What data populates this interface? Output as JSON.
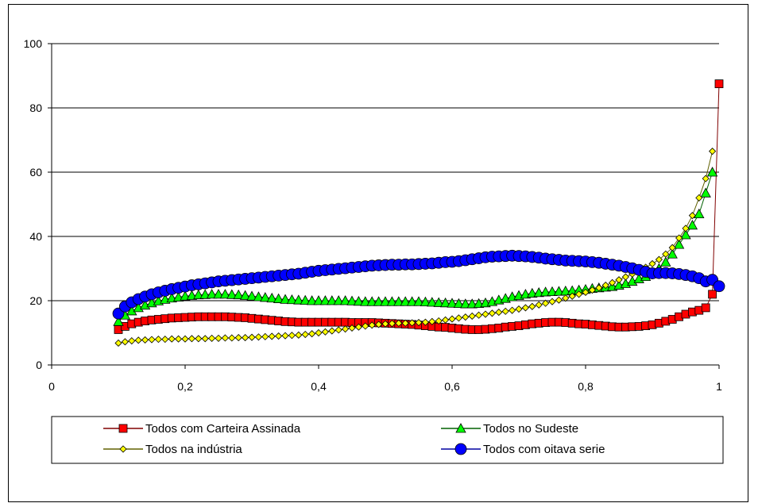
{
  "chart_data": {
    "type": "line",
    "title": "",
    "xlabel": "",
    "ylabel": "",
    "xlim": [
      0,
      1
    ],
    "ylim": [
      0,
      100
    ],
    "xticks": [
      "0",
      "0,2",
      "0,4",
      "0,6",
      "0,8",
      "1"
    ],
    "yticks": [
      "0",
      "20",
      "40",
      "60",
      "80",
      "100"
    ],
    "grid": "horizontal",
    "legend_position": "bottom",
    "series": [
      {
        "name": "Todos com Carteira Assinada",
        "color": "#ff0000",
        "marker": "square",
        "x": [
          0.1,
          0.11,
          0.12,
          0.13,
          0.14,
          0.15,
          0.16,
          0.17,
          0.18,
          0.19,
          0.2,
          0.21,
          0.22,
          0.23,
          0.24,
          0.25,
          0.26,
          0.27,
          0.28,
          0.29,
          0.3,
          0.31,
          0.32,
          0.33,
          0.34,
          0.35,
          0.36,
          0.37,
          0.38,
          0.39,
          0.4,
          0.41,
          0.42,
          0.43,
          0.44,
          0.45,
          0.46,
          0.47,
          0.48,
          0.49,
          0.5,
          0.51,
          0.52,
          0.53,
          0.54,
          0.55,
          0.56,
          0.57,
          0.58,
          0.59,
          0.6,
          0.61,
          0.62,
          0.63,
          0.64,
          0.65,
          0.66,
          0.67,
          0.68,
          0.69,
          0.7,
          0.71,
          0.72,
          0.73,
          0.74,
          0.75,
          0.76,
          0.77,
          0.78,
          0.79,
          0.8,
          0.81,
          0.82,
          0.83,
          0.84,
          0.85,
          0.86,
          0.87,
          0.88,
          0.89,
          0.9,
          0.91,
          0.92,
          0.93,
          0.94,
          0.95,
          0.96,
          0.97,
          0.98,
          0.99,
          1.0
        ],
        "y": [
          11.0,
          12.0,
          12.8,
          13.3,
          13.7,
          14.0,
          14.2,
          14.4,
          14.6,
          14.7,
          14.8,
          14.9,
          15.0,
          15.0,
          15.0,
          15.0,
          15.0,
          14.9,
          14.8,
          14.7,
          14.5,
          14.3,
          14.1,
          13.9,
          13.7,
          13.5,
          13.4,
          13.3,
          13.3,
          13.3,
          13.3,
          13.3,
          13.3,
          13.3,
          13.3,
          13.2,
          13.2,
          13.2,
          13.2,
          13.1,
          13.0,
          12.9,
          12.8,
          12.7,
          12.6,
          12.4,
          12.2,
          12.0,
          11.8,
          11.7,
          11.5,
          11.3,
          11.1,
          11.0,
          11.0,
          11.1,
          11.3,
          11.5,
          11.8,
          12.0,
          12.2,
          12.5,
          12.8,
          13.0,
          13.2,
          13.3,
          13.3,
          13.2,
          13.0,
          12.8,
          12.7,
          12.5,
          12.3,
          12.1,
          11.9,
          11.8,
          11.8,
          11.9,
          12.0,
          12.2,
          12.5,
          13.0,
          13.6,
          14.2,
          15.0,
          15.8,
          16.5,
          17.0,
          17.8,
          22.0,
          87.5
        ]
      },
      {
        "name": "Todos no Sudeste",
        "color": "#00ff00",
        "marker": "triangle",
        "x": [
          0.1,
          0.11,
          0.12,
          0.13,
          0.14,
          0.15,
          0.16,
          0.17,
          0.18,
          0.19,
          0.2,
          0.21,
          0.22,
          0.23,
          0.24,
          0.25,
          0.26,
          0.27,
          0.28,
          0.29,
          0.3,
          0.31,
          0.32,
          0.33,
          0.34,
          0.35,
          0.36,
          0.37,
          0.38,
          0.39,
          0.4,
          0.41,
          0.42,
          0.43,
          0.44,
          0.45,
          0.46,
          0.47,
          0.48,
          0.49,
          0.5,
          0.51,
          0.52,
          0.53,
          0.54,
          0.55,
          0.56,
          0.57,
          0.58,
          0.59,
          0.6,
          0.61,
          0.62,
          0.63,
          0.64,
          0.65,
          0.66,
          0.67,
          0.68,
          0.69,
          0.7,
          0.71,
          0.72,
          0.73,
          0.74,
          0.75,
          0.76,
          0.77,
          0.78,
          0.79,
          0.8,
          0.81,
          0.82,
          0.83,
          0.84,
          0.85,
          0.86,
          0.87,
          0.88,
          0.89,
          0.9,
          0.91,
          0.92,
          0.93,
          0.94,
          0.95,
          0.96,
          0.97,
          0.98,
          0.99
        ],
        "y": [
          13.5,
          15.5,
          16.8,
          17.8,
          18.6,
          19.3,
          19.9,
          20.4,
          20.8,
          21.1,
          21.4,
          21.6,
          21.8,
          21.9,
          22.0,
          22.0,
          22.0,
          21.9,
          21.8,
          21.6,
          21.4,
          21.2,
          21.0,
          20.8,
          20.6,
          20.4,
          20.3,
          20.2,
          20.1,
          20.0,
          20.0,
          20.0,
          20.0,
          20.0,
          20.0,
          19.9,
          19.8,
          19.7,
          19.7,
          19.7,
          19.7,
          19.7,
          19.7,
          19.7,
          19.7,
          19.7,
          19.6,
          19.5,
          19.4,
          19.3,
          19.2,
          19.1,
          19.0,
          19.0,
          19.1,
          19.3,
          19.7,
          20.2,
          20.7,
          21.2,
          21.6,
          22.0,
          22.3,
          22.5,
          22.7,
          22.8,
          22.9,
          23.0,
          23.1,
          23.3,
          23.5,
          23.8,
          24.0,
          24.2,
          24.4,
          24.8,
          25.3,
          26.0,
          26.8,
          27.5,
          28.5,
          30.0,
          32.0,
          34.5,
          37.5,
          40.5,
          43.5,
          47.0,
          53.5,
          60.0
        ]
      },
      {
        "name": "Todos na indústria",
        "color": "#ffff00",
        "marker": "diamond",
        "x": [
          0.1,
          0.11,
          0.12,
          0.13,
          0.14,
          0.15,
          0.16,
          0.17,
          0.18,
          0.19,
          0.2,
          0.21,
          0.22,
          0.23,
          0.24,
          0.25,
          0.26,
          0.27,
          0.28,
          0.29,
          0.3,
          0.31,
          0.32,
          0.33,
          0.34,
          0.35,
          0.36,
          0.37,
          0.38,
          0.39,
          0.4,
          0.41,
          0.42,
          0.43,
          0.44,
          0.45,
          0.46,
          0.47,
          0.48,
          0.49,
          0.5,
          0.51,
          0.52,
          0.53,
          0.54,
          0.55,
          0.56,
          0.57,
          0.58,
          0.59,
          0.6,
          0.61,
          0.62,
          0.63,
          0.64,
          0.65,
          0.66,
          0.67,
          0.68,
          0.69,
          0.7,
          0.71,
          0.72,
          0.73,
          0.74,
          0.75,
          0.76,
          0.77,
          0.78,
          0.79,
          0.8,
          0.81,
          0.82,
          0.83,
          0.84,
          0.85,
          0.86,
          0.87,
          0.88,
          0.89,
          0.9,
          0.91,
          0.92,
          0.93,
          0.94,
          0.95,
          0.96,
          0.97,
          0.98,
          0.99
        ],
        "y": [
          6.8,
          7.2,
          7.5,
          7.7,
          7.8,
          7.9,
          8.0,
          8.0,
          8.1,
          8.1,
          8.1,
          8.2,
          8.2,
          8.2,
          8.3,
          8.3,
          8.4,
          8.4,
          8.5,
          8.5,
          8.6,
          8.7,
          8.8,
          8.9,
          9.0,
          9.1,
          9.2,
          9.3,
          9.5,
          9.7,
          10.0,
          10.3,
          10.6,
          10.9,
          11.2,
          11.5,
          11.8,
          12.1,
          12.4,
          12.6,
          12.8,
          12.9,
          13.0,
          13.0,
          13.1,
          13.2,
          13.3,
          13.5,
          13.7,
          14.0,
          14.3,
          14.6,
          14.9,
          15.2,
          15.5,
          15.8,
          16.1,
          16.4,
          16.7,
          17.0,
          17.4,
          17.8,
          18.2,
          18.7,
          19.2,
          19.7,
          20.2,
          20.8,
          21.4,
          22.0,
          22.6,
          23.3,
          24.0,
          24.8,
          25.6,
          26.5,
          27.4,
          28.3,
          29.3,
          30.4,
          31.5,
          32.8,
          34.5,
          36.5,
          39.5,
          42.5,
          46.5,
          52.0,
          58.0,
          66.5
        ]
      },
      {
        "name": "Todos com oitava serie",
        "color": "#0000ff",
        "marker": "circle",
        "x": [
          0.1,
          0.11,
          0.12,
          0.13,
          0.14,
          0.15,
          0.16,
          0.17,
          0.18,
          0.19,
          0.2,
          0.21,
          0.22,
          0.23,
          0.24,
          0.25,
          0.26,
          0.27,
          0.28,
          0.29,
          0.3,
          0.31,
          0.32,
          0.33,
          0.34,
          0.35,
          0.36,
          0.37,
          0.38,
          0.39,
          0.4,
          0.41,
          0.42,
          0.43,
          0.44,
          0.45,
          0.46,
          0.47,
          0.48,
          0.49,
          0.5,
          0.51,
          0.52,
          0.53,
          0.54,
          0.55,
          0.56,
          0.57,
          0.58,
          0.59,
          0.6,
          0.61,
          0.62,
          0.63,
          0.64,
          0.65,
          0.66,
          0.67,
          0.68,
          0.69,
          0.7,
          0.71,
          0.72,
          0.73,
          0.74,
          0.75,
          0.76,
          0.77,
          0.78,
          0.79,
          0.8,
          0.81,
          0.82,
          0.83,
          0.84,
          0.85,
          0.86,
          0.87,
          0.88,
          0.89,
          0.9,
          0.91,
          0.92,
          0.93,
          0.94,
          0.95,
          0.96,
          0.97,
          0.98,
          0.99,
          1.0
        ],
        "y": [
          16.0,
          18.2,
          19.5,
          20.5,
          21.3,
          22.0,
          22.6,
          23.1,
          23.6,
          24.0,
          24.4,
          24.8,
          25.1,
          25.4,
          25.7,
          26.0,
          26.2,
          26.4,
          26.6,
          26.8,
          27.0,
          27.2,
          27.4,
          27.6,
          27.8,
          28.0,
          28.2,
          28.4,
          28.7,
          29.0,
          29.3,
          29.5,
          29.7,
          29.9,
          30.1,
          30.3,
          30.5,
          30.7,
          30.9,
          31.0,
          31.1,
          31.2,
          31.2,
          31.3,
          31.3,
          31.4,
          31.5,
          31.6,
          31.8,
          32.0,
          32.1,
          32.3,
          32.6,
          32.9,
          33.2,
          33.5,
          33.7,
          33.8,
          33.9,
          34.0,
          33.9,
          33.8,
          33.6,
          33.4,
          33.1,
          32.9,
          32.7,
          32.5,
          32.4,
          32.3,
          32.2,
          32.0,
          31.8,
          31.5,
          31.2,
          30.9,
          30.5,
          30.1,
          29.6,
          29.0,
          28.5,
          28.6,
          28.6,
          28.5,
          28.3,
          28.0,
          27.6,
          27.0,
          26.0,
          26.5,
          24.5
        ]
      }
    ]
  }
}
